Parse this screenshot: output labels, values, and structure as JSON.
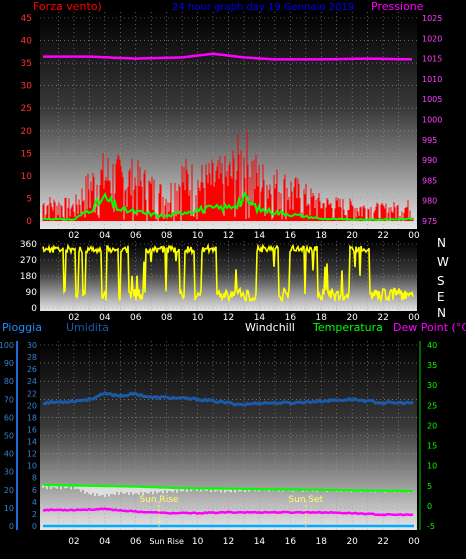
{
  "header": {
    "left_title": "Forza vento)",
    "center_title": "24 hour graph day  19 Gennaio 2019",
    "right_title": "Pressione"
  },
  "bottom_header": {
    "pioggia": "Pioggia",
    "umidita": "Umidita",
    "windchill": "Windchill",
    "temperatura": "Temperatura",
    "dewpoint": "Dew Point (°C)"
  },
  "compass_letters": [
    "N",
    "W",
    "S",
    "E",
    "N"
  ],
  "colors": {
    "wind": "#ff0000",
    "gust": "#ff0000",
    "avg_wind": "#00ff00",
    "pressure": "#ff00ff",
    "direction": "#ffff00",
    "humidity": "#1a5aa8",
    "temperature": "#00ff00",
    "dewpoint": "#ff00ff",
    "windchill": "#ffffff",
    "rain": "#00aaff",
    "header_left": "#ff0000",
    "header_center": "#0000ff",
    "header_right": "#ff00ff",
    "pioggia": "#1e90ff",
    "umidita": "#1a5aa8",
    "dew_label": "#ff00ff",
    "temp_label": "#00ff00"
  },
  "chart_data": [
    {
      "type": "area",
      "id": "wind_pressure",
      "ylabel_left": "Forza vento)",
      "ylabel_right": "Pressione",
      "ylim_left": [
        0,
        45
      ],
      "ylim_right": [
        975,
        1025
      ],
      "yticks_left": [
        0,
        5,
        10,
        15,
        20,
        25,
        30,
        35,
        40,
        45
      ],
      "yticks_right": [
        975,
        980,
        985,
        990,
        995,
        1000,
        1005,
        1010,
        1015,
        1020,
        1025
      ],
      "x_tick_labels": [
        "02",
        "04",
        "06",
        "08",
        "10",
        "12",
        "14",
        "16",
        "18",
        "20",
        "22",
        "00"
      ],
      "grid": true,
      "series": [
        {
          "name": "Pressione",
          "x_hours": [
            0,
            3,
            6,
            9,
            11,
            13,
            15,
            18,
            21,
            24
          ],
          "values": [
            1015.5,
            1015.5,
            1015.0,
            1015.3,
            1016.2,
            1015.3,
            1014.8,
            1014.8,
            1015.0,
            1014.8
          ]
        }
      ],
      "wind_gust_envelope": {
        "x_hours": [
          0,
          2,
          3,
          4,
          6,
          8,
          9,
          10,
          12,
          13,
          14,
          16,
          18,
          20,
          22,
          24
        ],
        "values": [
          6,
          5,
          12,
          16,
          14,
          8,
          15,
          13,
          15,
          22,
          14,
          11,
          6,
          5,
          4,
          5
        ]
      },
      "wind_avg": {
        "x_hours": [
          0,
          2,
          3,
          4,
          5,
          6,
          8,
          9,
          10,
          12,
          13,
          14,
          15,
          16,
          18,
          20,
          22,
          24
        ],
        "values": [
          0.5,
          0.3,
          2.5,
          5,
          2.5,
          2,
          1,
          2,
          2.5,
          3,
          5,
          2.5,
          2,
          1.5,
          0.5,
          0.3,
          0.3,
          0.5
        ]
      }
    },
    {
      "type": "line",
      "id": "wind_direction",
      "ylim": [
        0,
        360
      ],
      "yticks": [
        0,
        90,
        180,
        270,
        360
      ],
      "x_tick_labels": [
        "02",
        "04",
        "06",
        "08",
        "10",
        "12",
        "14",
        "16",
        "18",
        "20",
        "22",
        "00"
      ],
      "note_pattern": "Direction alternates mostly between ~320° and ~45-90°"
    },
    {
      "type": "line",
      "id": "temp_humidity",
      "ylim_left": [
        0,
        100
      ],
      "yticks_left": [
        0,
        10,
        20,
        30,
        40,
        50,
        60,
        70,
        80,
        90,
        100
      ],
      "ylim_rain": [
        0,
        30
      ],
      "yticks_rain": [
        0,
        2,
        4,
        6,
        8,
        10,
        12,
        14,
        16,
        18,
        20,
        22,
        24,
        26,
        28,
        30
      ],
      "ylim_right": [
        -5,
        40
      ],
      "yticks_right": [
        -5,
        0,
        5,
        10,
        15,
        20,
        25,
        30,
        35,
        40
      ],
      "x_tick_labels": [
        "02",
        "04",
        "06",
        "Sun Rise",
        "10",
        "12",
        "14",
        "16",
        "18",
        "20",
        "22",
        "00"
      ],
      "annotations": [
        "Sun Rise",
        "Sun Set"
      ],
      "sun_rise_hour": 7.5,
      "sun_set_hour": 17.0,
      "series": [
        {
          "name": "Umidita",
          "x_hours": [
            0,
            2,
            3,
            4,
            5,
            6,
            7,
            8,
            10,
            12,
            13,
            14,
            16,
            18,
            20,
            22,
            24
          ],
          "values": [
            68,
            69,
            70,
            73,
            72,
            73,
            71,
            71,
            70,
            68,
            67,
            68,
            68,
            69,
            70,
            68,
            68
          ]
        },
        {
          "name": "Temperatura",
          "x_hours": [
            0,
            3,
            6,
            9,
            12,
            15,
            18,
            21,
            24
          ],
          "values": [
            5.2,
            5.0,
            4.8,
            4.4,
            4.3,
            4.1,
            4.0,
            3.8,
            3.7
          ]
        },
        {
          "name": "Windchill",
          "x_hours": [
            0,
            2,
            3,
            4,
            5,
            6,
            8,
            10,
            12,
            14,
            16,
            18,
            20,
            22,
            24
          ],
          "values": [
            4.5,
            4.5,
            3.0,
            2.5,
            3.2,
            3.0,
            3.5,
            4.0,
            3.6,
            4.0,
            3.9,
            3.9,
            3.8,
            3.7,
            3.7
          ]
        },
        {
          "name": "Dew Point (°C)",
          "x_hours": [
            0,
            2,
            4,
            6,
            8,
            10,
            12,
            14,
            16,
            18,
            20,
            22,
            24
          ],
          "values": [
            -1.0,
            -1.0,
            -0.8,
            -1.4,
            -1.8,
            -1.8,
            -1.6,
            -1.6,
            -1.6,
            -1.6,
            -1.8,
            -2.2,
            -2.2
          ]
        },
        {
          "name": "Pioggia",
          "x_hours": [
            0,
            24
          ],
          "values": [
            0,
            0
          ]
        }
      ]
    }
  ]
}
